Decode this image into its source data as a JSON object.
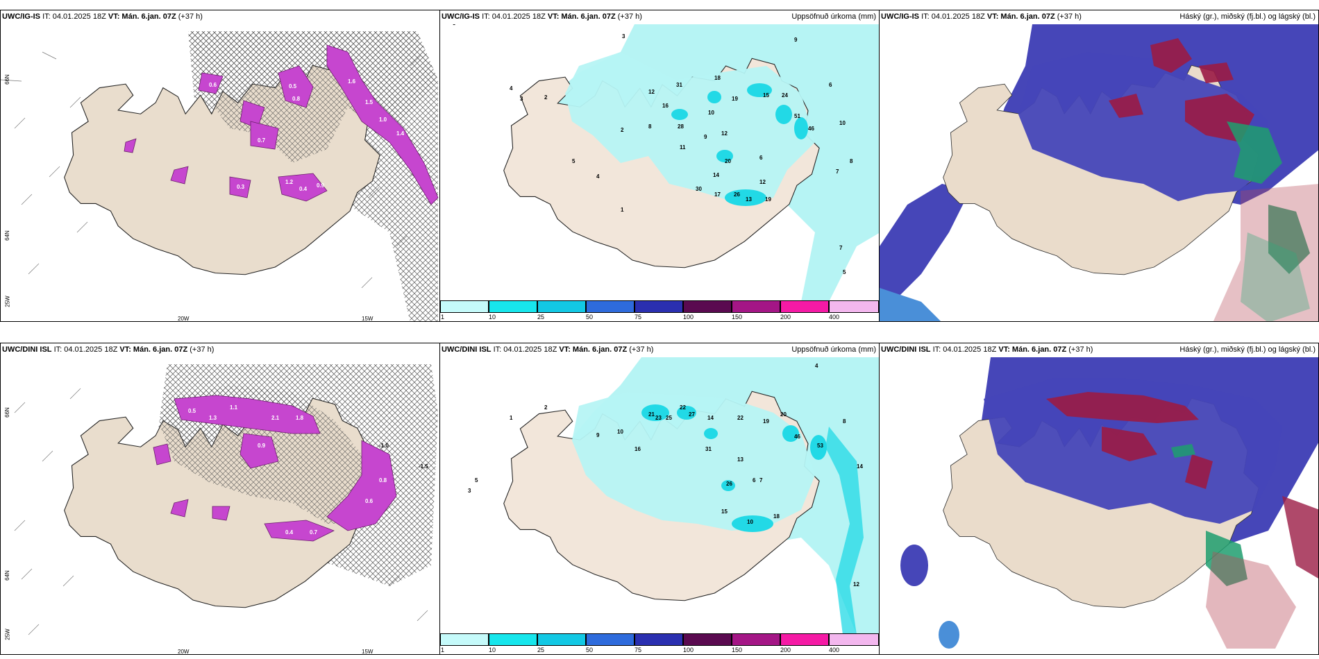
{
  "header": {
    "it_label": "IT: 04.01.2025 18Z",
    "vt_label": "VT: Mán. 6.jan. 07Z",
    "lead": "(+37 h)"
  },
  "rows": [
    {
      "model": "UWC/IG-IS"
    },
    {
      "model": "UWC/DINI ISL"
    }
  ],
  "panel_titles": {
    "precip": "Uppsöfnuð úrkoma (mm)",
    "clouds": "Háský (gr.), miðský (fj.bl.) og lágský (bl.)"
  },
  "coords": {
    "lat66": "66N",
    "lat64": "64N",
    "lon20": "20W",
    "lon15": "15W",
    "lon25": "25W"
  },
  "colors": {
    "land": "#eadccb",
    "precip_light": "#b6f4f4",
    "precip_mid": "#22d9e6",
    "snow_magenta": "#c646cf",
    "cloud_blue": "#4646b8",
    "cloud_red": "#9b1b45",
    "cloud_green": "#1f9e6e"
  },
  "legend": {
    "labels": [
      "1",
      "10",
      "25",
      "50",
      "75",
      "100",
      "150",
      "200",
      "400"
    ],
    "colors": [
      "#c5fafa",
      "#17e6ec",
      "#12c8e4",
      "#2e6bdc",
      "#2a2fb0",
      "#5a0a50",
      "#a41686",
      "#f51aa5",
      "#f3b7ee"
    ]
  },
  "map_labels": {
    "top_left": [
      "0.5",
      "0.8",
      "0.6",
      "1.0",
      "1.4",
      "1.5",
      "0.9",
      "0.4",
      "0.3",
      "0.7",
      "1.2",
      "1.6"
    ],
    "bottom_left": [
      "-1.0",
      "-1.5",
      "0.5",
      "0.9",
      "1.1",
      "2.1",
      "1.8",
      "0.6",
      "0.4",
      "0.8",
      "1.3",
      "0.7"
    ],
    "top_precip": [
      "3",
      "9",
      "4",
      "3",
      "18",
      "12",
      "31",
      "16",
      "8",
      "19",
      "15",
      "24",
      "6",
      "2",
      "11",
      "12",
      "10",
      "28",
      "9",
      "51",
      "46",
      "10",
      "1",
      "5",
      "4",
      "14",
      "20",
      "12",
      "17",
      "26",
      "13",
      "19",
      "30",
      "6",
      "7",
      "8",
      "5",
      "2",
      "7"
    ],
    "bottom_precip": [
      "4",
      "8",
      "2",
      "1",
      "10",
      "22",
      "27",
      "25",
      "21",
      "23",
      "31",
      "14",
      "22",
      "19",
      "20",
      "46",
      "53",
      "16",
      "13",
      "15",
      "26",
      "18",
      "10",
      "9",
      "5",
      "12",
      "3",
      "6",
      "7",
      "14"
    ]
  }
}
